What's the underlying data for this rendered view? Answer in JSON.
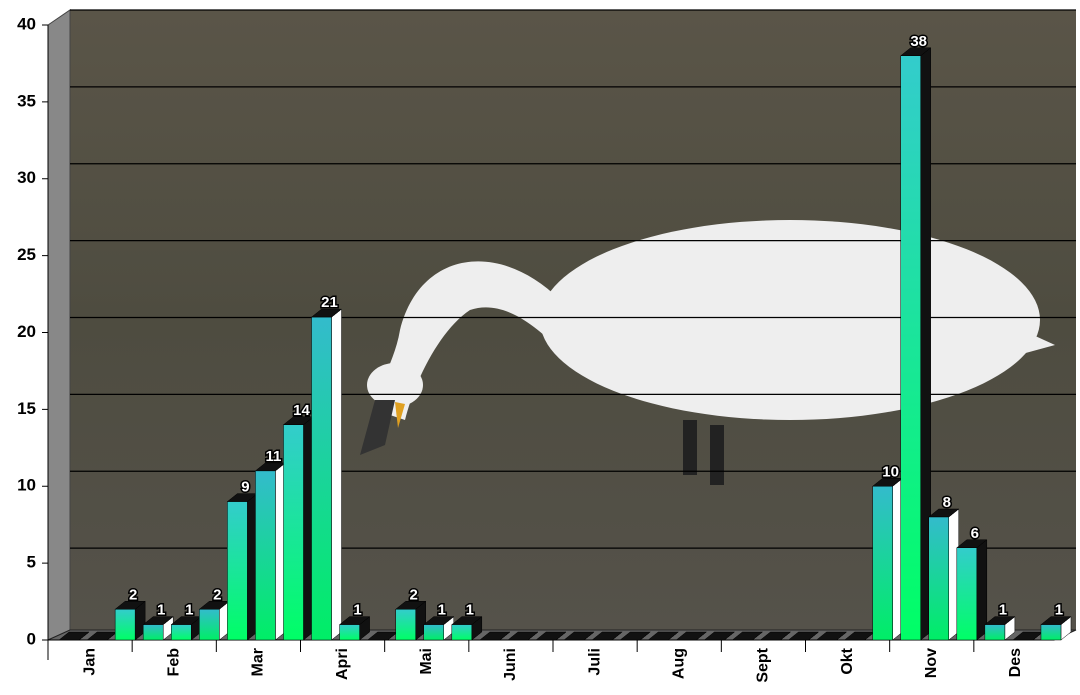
{
  "chart_data": {
    "type": "bar",
    "categories": [
      null,
      "Jan",
      null,
      null,
      "Feb",
      null,
      null,
      "Mar",
      null,
      null,
      "Apri",
      null,
      null,
      "Mai",
      null,
      null,
      "Juni",
      null,
      null,
      "Juli",
      null,
      null,
      "Aug",
      null,
      null,
      "Sept",
      null,
      null,
      "Okt",
      null,
      null,
      "Nov",
      null,
      null,
      "Des",
      null
    ],
    "values": [
      0,
      0,
      2,
      1,
      1,
      2,
      9,
      11,
      14,
      21,
      1,
      0,
      2,
      1,
      1,
      0,
      0,
      0,
      0,
      0,
      0,
      0,
      0,
      0,
      0,
      0,
      0,
      0,
      0,
      10,
      38,
      8,
      6,
      1,
      0,
      1
    ],
    "colors": [
      "#00ff66",
      "#33cccc"
    ],
    "ylim": [
      0,
      40
    ],
    "yticks": [
      0,
      5,
      10,
      15,
      20,
      25,
      30,
      35,
      40
    ],
    "grid": true
  }
}
